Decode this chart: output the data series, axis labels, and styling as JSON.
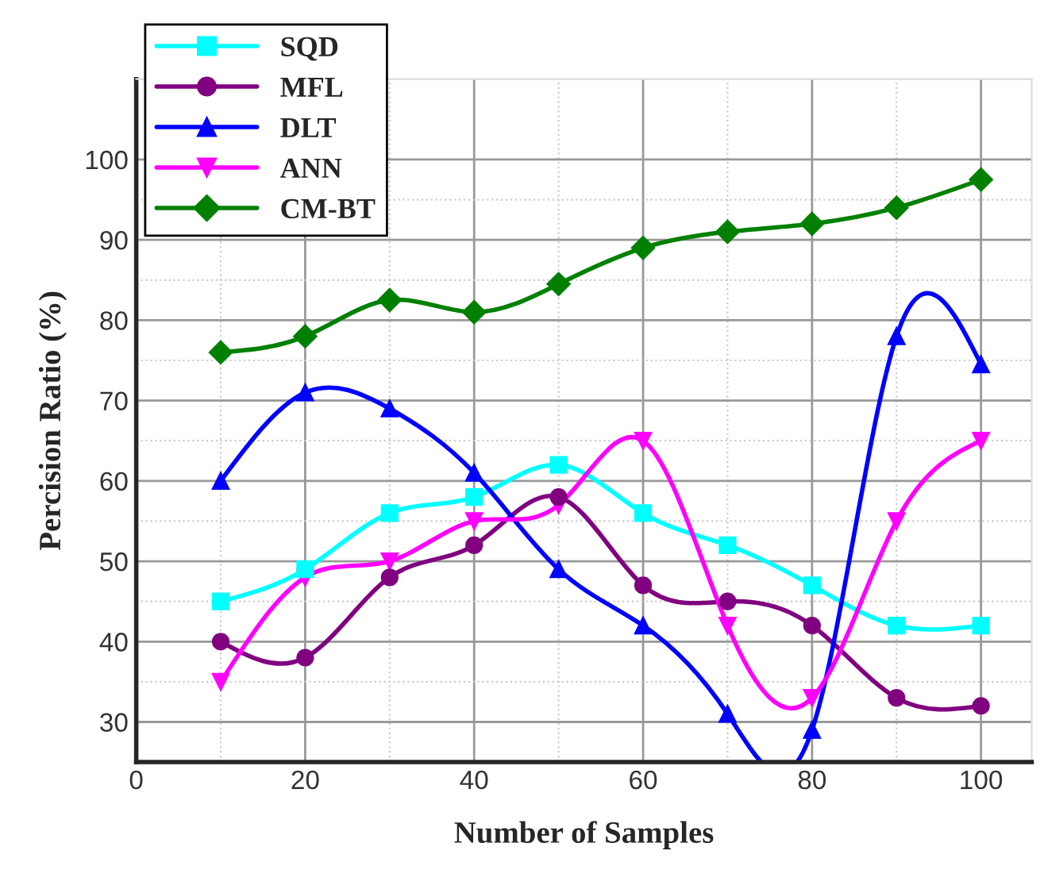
{
  "chart_data": {
    "type": "line",
    "xlabel": "Number of Samples",
    "ylabel": "Percision Ratio (%)",
    "x": [
      10,
      20,
      30,
      40,
      50,
      60,
      70,
      80,
      90,
      100
    ],
    "xlim": [
      0,
      106
    ],
    "xticks": [
      0,
      20,
      40,
      60,
      80,
      100
    ],
    "ylim": [
      25,
      110
    ],
    "yticks": [
      30,
      40,
      50,
      60,
      70,
      80,
      90,
      100
    ],
    "grid": true,
    "legend": "top left",
    "series": [
      {
        "name": "SQD",
        "color": "#00ffff",
        "marker": "square",
        "values": [
          45,
          49,
          56,
          58,
          62,
          56,
          52,
          47,
          42,
          42
        ]
      },
      {
        "name": "MFL",
        "color": "#800080",
        "marker": "circle",
        "values": [
          40,
          38,
          48,
          52,
          58,
          47,
          45,
          42,
          33,
          32
        ]
      },
      {
        "name": "DLT",
        "color": "#0000ff",
        "marker": "triangle",
        "values": [
          60,
          71,
          69,
          61,
          49,
          42,
          31,
          29,
          78,
          74.5
        ]
      },
      {
        "name": "ANN",
        "color": "#ff00ff",
        "marker": "triangle_down",
        "values": [
          35,
          48,
          50,
          55,
          57,
          65,
          42,
          33,
          55,
          65
        ]
      },
      {
        "name": "CM-BT",
        "color": "#008000",
        "marker": "diamond",
        "values": [
          76,
          78,
          82.5,
          81,
          84.5,
          89,
          91,
          92,
          94,
          97.5
        ]
      }
    ]
  }
}
